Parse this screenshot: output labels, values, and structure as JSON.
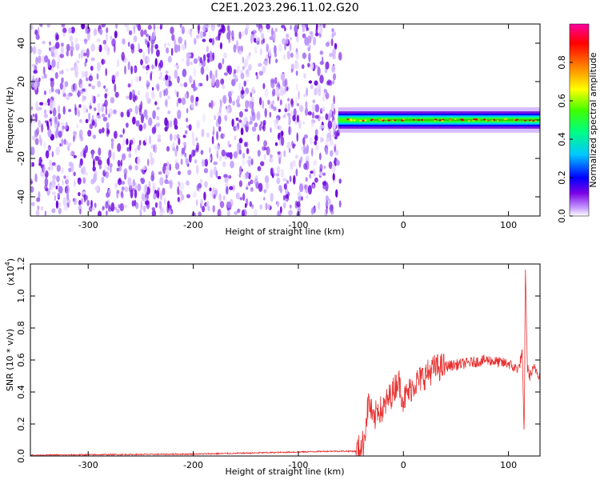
{
  "title": "C2E1.2023.296.11.02.G20",
  "charts": [
    {
      "type": "heatmap",
      "xlabel": "Height of straight line (km)",
      "ylabel": "Frequency (Hz)",
      "xlim": [
        -355,
        130
      ],
      "ylim": [
        -50,
        50
      ],
      "xticks": [
        "-300",
        "-200",
        "-100",
        "0",
        "100"
      ],
      "xtick_values": [
        -300,
        -200,
        -100,
        0,
        100
      ],
      "yticks": [
        "-40",
        "-20",
        "0",
        "20",
        "40"
      ],
      "ytick_values": [
        -40,
        -20,
        0,
        20,
        40
      ],
      "noise_region_x": [
        -355,
        -60
      ],
      "signal_band": {
        "x_start": -62,
        "x_end": 130,
        "frequency_center": 0,
        "half_width": 3
      },
      "colorbar": {
        "label": "Normalized spectral amplitude",
        "range": [
          0,
          1
        ],
        "ticks": [
          "0.0",
          "0.2",
          "0.4",
          "0.6",
          "0.8"
        ],
        "tick_values": [
          0.0,
          0.2,
          0.4,
          0.6,
          0.8
        ],
        "colors": [
          "#ffffff",
          "#c8a0ff",
          "#7a00e6",
          "#0000ff",
          "#00c8ff",
          "#00ff80",
          "#40ff00",
          "#ffff00",
          "#ff8000",
          "#ff0000",
          "#ff00a0"
        ]
      }
    },
    {
      "type": "line",
      "xlabel": "Height of straight line (km)",
      "ylabel": "SNR (10 * v/v)",
      "multiplier": "(x10^4)",
      "multiplier_base": "(x10",
      "multiplier_exp": "4",
      "multiplier_close": ")",
      "xlim": [
        -355,
        130
      ],
      "ylim": [
        0,
        1.2
      ],
      "xticks": [
        "-300",
        "-200",
        "-100",
        "0",
        "100"
      ],
      "xtick_values": [
        -300,
        -200,
        -100,
        0,
        100
      ],
      "yticks": [
        "0.0",
        "0.2",
        "0.4",
        "0.6",
        "0.8",
        "1.0",
        "1.2"
      ],
      "ytick_values": [
        0.0,
        0.2,
        0.4,
        0.6,
        0.8,
        1.0,
        1.2
      ],
      "line_color": "#e83030",
      "series_x": [
        -355,
        -300,
        -250,
        -200,
        -150,
        -100,
        -70,
        -45,
        -38,
        -33,
        -28,
        -25,
        -20,
        -15,
        -10,
        -5,
        0,
        10,
        20,
        30,
        40,
        60,
        80,
        95,
        100,
        105,
        110,
        113,
        115,
        116,
        118,
        120,
        125,
        130
      ],
      "series_y": [
        0.005,
        0.008,
        0.01,
        0.012,
        0.018,
        0.025,
        0.03,
        0.03,
        0.08,
        0.35,
        0.2,
        0.3,
        0.28,
        0.35,
        0.4,
        0.48,
        0.35,
        0.45,
        0.5,
        0.55,
        0.56,
        0.58,
        0.6,
        0.58,
        0.58,
        0.55,
        0.55,
        0.65,
        0.1,
        1.2,
        0.55,
        0.5,
        0.55,
        0.5
      ]
    }
  ]
}
